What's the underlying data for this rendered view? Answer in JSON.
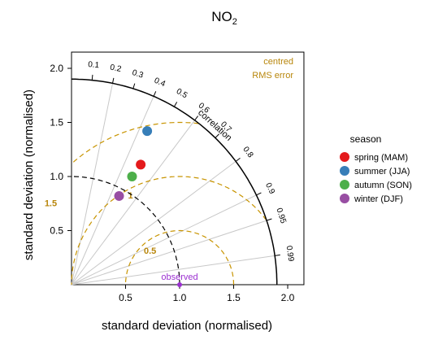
{
  "chart_data": {
    "type": "scatter",
    "subtype": "taylor-diagram",
    "title_main": "NO",
    "title_sub": "2",
    "xlabel": "standard deviation (normalised)",
    "ylabel": "standard deviation (normalised)",
    "xlim": [
      0,
      2.15
    ],
    "ylim": [
      0,
      2.15
    ],
    "x_ticks": [
      0.5,
      1.0,
      1.5,
      2.0
    ],
    "x_tick_labels": [
      "0.5",
      "1.0",
      "1.5",
      "2.0"
    ],
    "y_ticks": [
      0.5,
      1.0,
      1.5,
      2.0
    ],
    "y_tick_labels": [
      "0.5",
      "1.0",
      "1.5",
      "2.0"
    ],
    "correlation_label": "correlation",
    "correlation_ticks": [
      0.1,
      0.2,
      0.3,
      0.4,
      0.5,
      0.6,
      0.7,
      0.8,
      0.9,
      0.95,
      0.99
    ],
    "correlation_tick_labels": [
      "0.1",
      "0.2",
      "0.3",
      "0.4",
      "0.5",
      "0.6",
      "0.7",
      "0.8",
      "0.9",
      "0.95",
      "0.99"
    ],
    "correlation_gridlines": [
      0.2,
      0.4,
      0.6,
      0.8,
      0.9,
      0.95,
      0.99
    ],
    "outer_arc_radius": 1.9,
    "observed_arc_radius": 1.0,
    "rms_contours": [
      0.5,
      1.0,
      1.5
    ],
    "rms_contour_labels": [
      "0.5",
      "1",
      "1.5"
    ],
    "rms_legend_line1": "centred",
    "rms_legend_line2": "RMS error",
    "observed": {
      "sd": 1.0,
      "label": "observed",
      "color": "#9b30d0"
    },
    "legend_title": "season",
    "legend_position": "right",
    "series": [
      {
        "name": "spring (MAM)",
        "x": 0.64,
        "y": 1.11,
        "color": "#e41a1c"
      },
      {
        "name": "summer (JJA)",
        "x": 0.7,
        "y": 1.42,
        "color": "#377eb8"
      },
      {
        "name": "autumn (SON)",
        "x": 0.56,
        "y": 1.0,
        "color": "#4daf4a"
      },
      {
        "name": "winter (DJF)",
        "x": 0.44,
        "y": 0.82,
        "color": "#984ea3"
      }
    ],
    "colors": {
      "axis": "#000000",
      "grid": "#c8c8c8",
      "rms": "#c89400",
      "rms_label": "#b8860b",
      "observed_arc": "#000000"
    }
  }
}
